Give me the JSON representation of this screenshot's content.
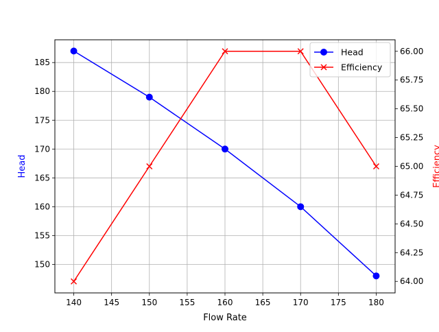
{
  "chart_data": {
    "type": "line",
    "xlabel": "Flow Rate",
    "ylabel_left": "Head",
    "ylabel_right": "Efficiency",
    "x": [
      140,
      150,
      160,
      170,
      180
    ],
    "xlim": [
      137.5,
      182.5
    ],
    "xticks": [
      140,
      145,
      150,
      155,
      160,
      165,
      170,
      175,
      180
    ],
    "left_axis": {
      "ylim": [
        145.05,
        188.95
      ],
      "ticks": [
        150,
        155,
        160,
        165,
        170,
        175,
        180,
        185
      ]
    },
    "right_axis": {
      "ylim": [
        63.9,
        66.1
      ],
      "ticks": [
        "64.00",
        "64.25",
        "64.50",
        "64.75",
        "65.00",
        "65.25",
        "65.50",
        "65.75",
        "66.00"
      ]
    },
    "grid": true,
    "legend_position": "top-right",
    "series": [
      {
        "name": "Head",
        "axis": "left",
        "values": [
          187,
          179,
          170,
          160,
          148
        ],
        "color": "#0000ff",
        "marker": "circle"
      },
      {
        "name": "Efficiency",
        "axis": "right",
        "values": [
          64,
          65,
          66,
          66,
          65
        ],
        "color": "#ff0000",
        "marker": "x"
      }
    ]
  }
}
